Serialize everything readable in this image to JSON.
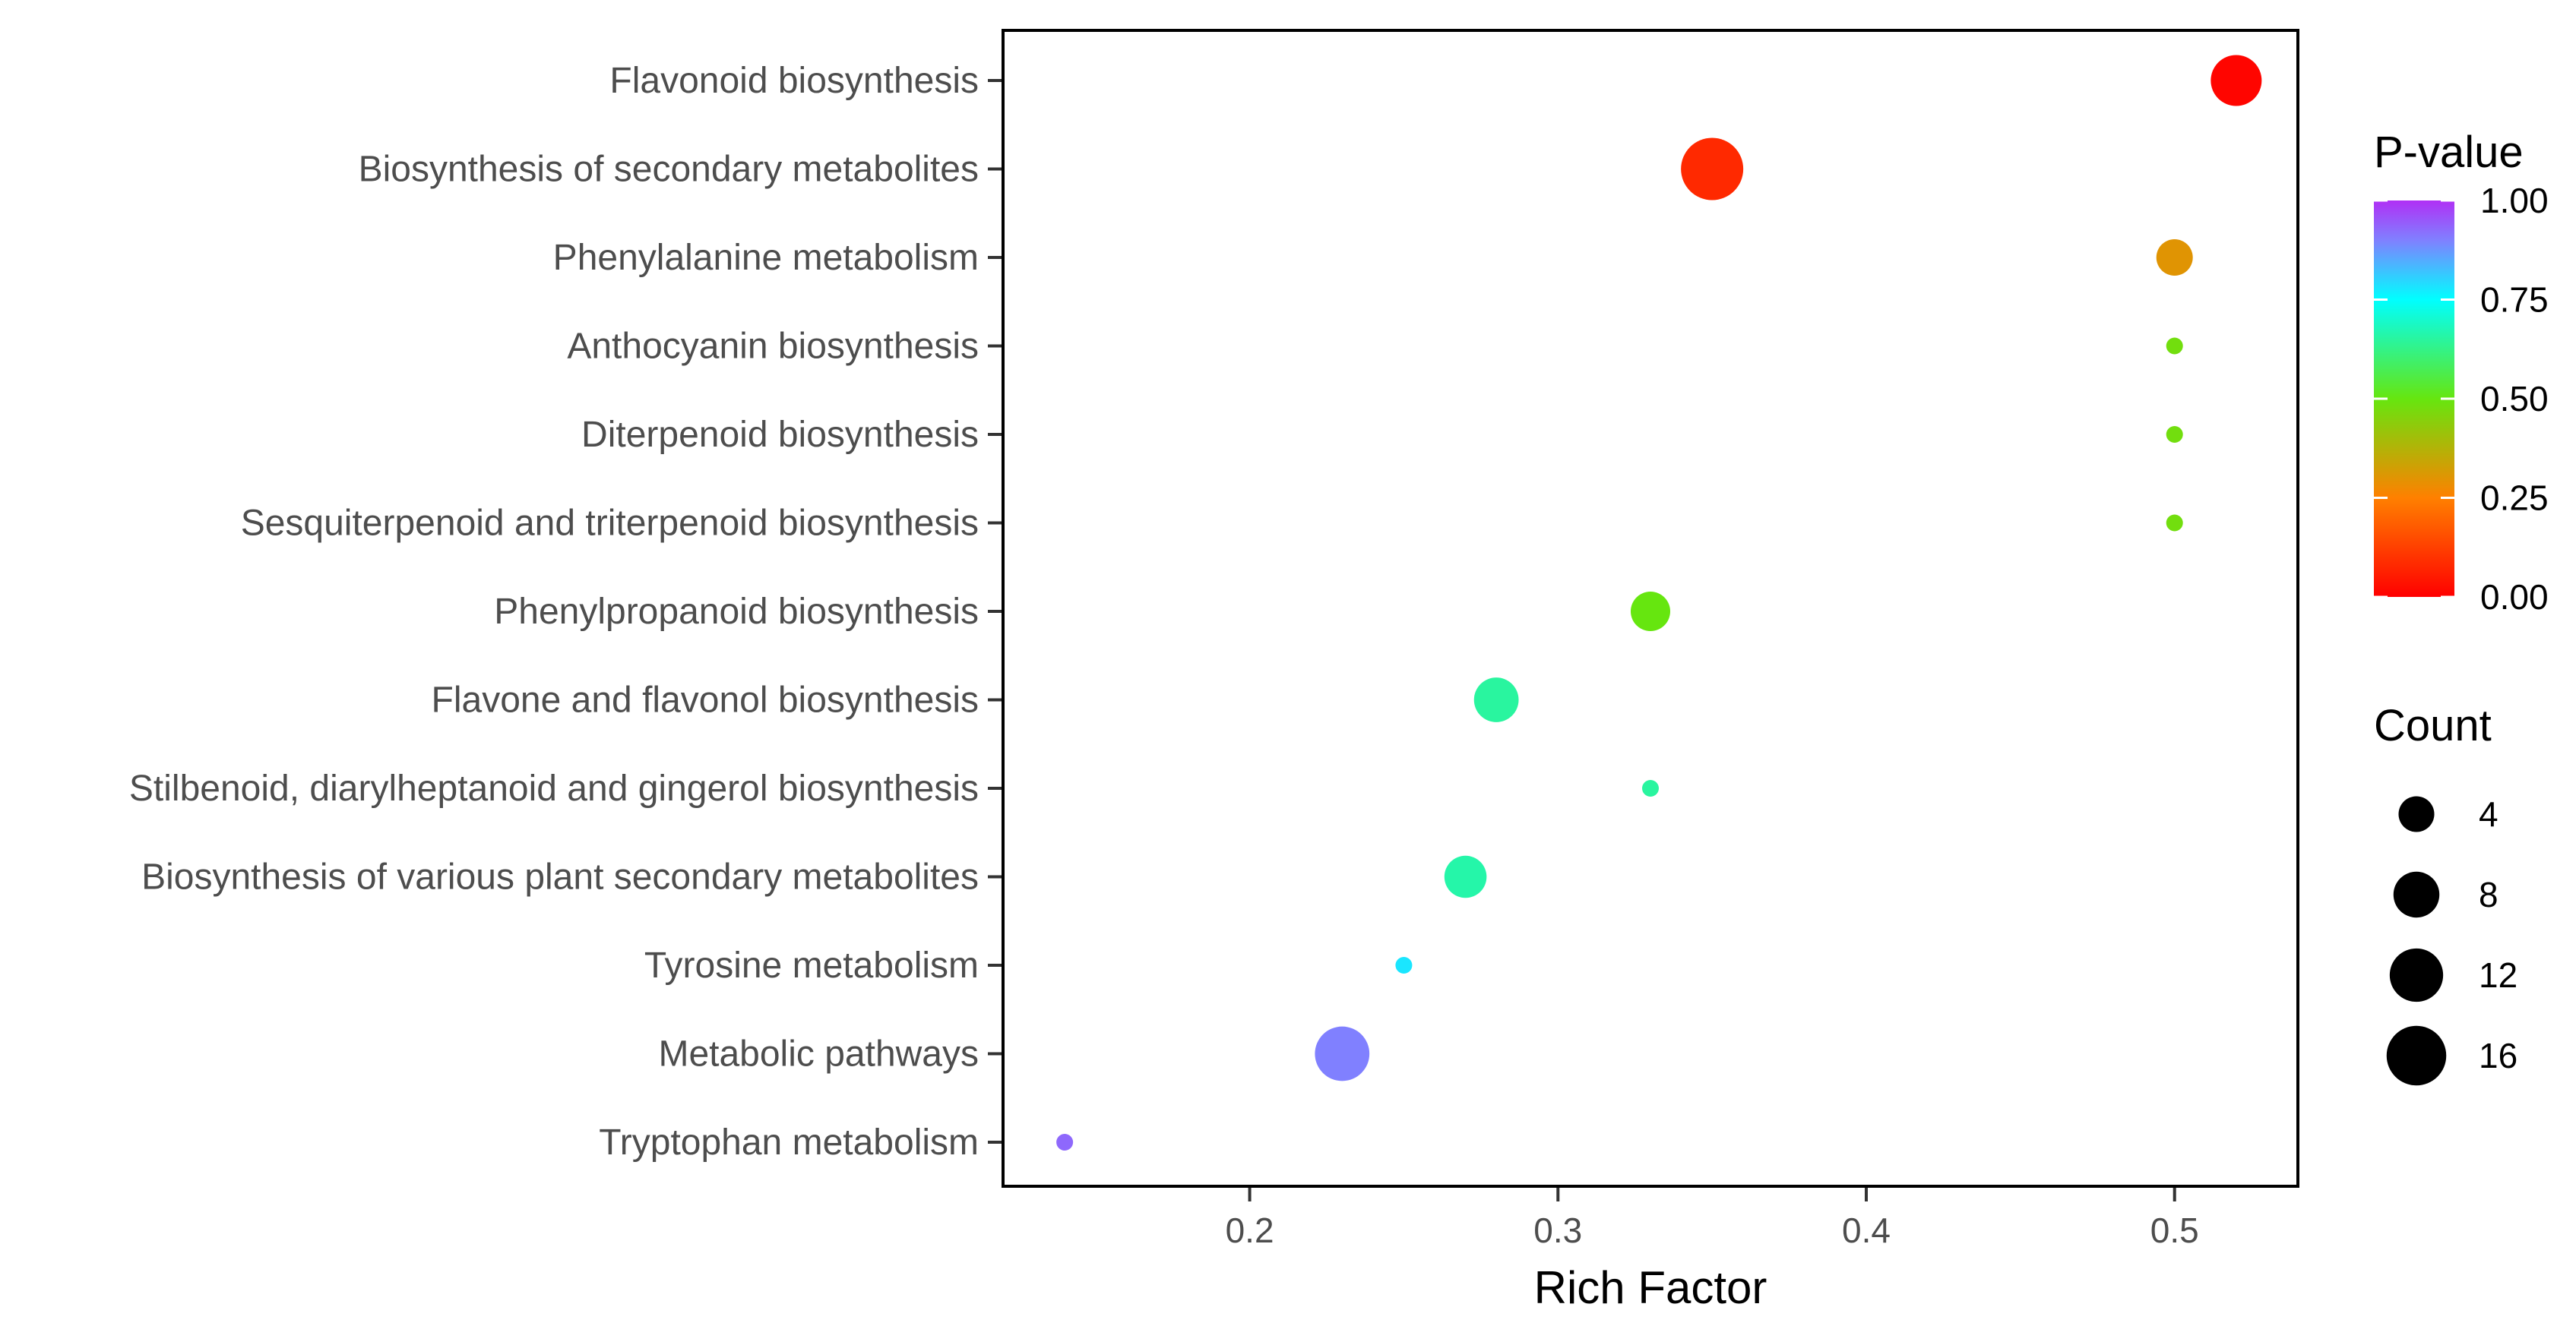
{
  "chart_data": {
    "type": "scatter",
    "xlabel": "Rich Factor",
    "ylabel": "",
    "xlim": [
      0.12,
      0.54
    ],
    "x_ticks": [
      0.2,
      0.3,
      0.4,
      0.5
    ],
    "x_tick_labels": [
      "0.2",
      "0.3",
      "0.4",
      "0.5"
    ],
    "grid": false,
    "legend_placement": "right",
    "categories": [
      "Flavonoid biosynthesis",
      "Biosynthesis of secondary metabolites",
      "Phenylalanine metabolism",
      "Anthocyanin biosynthesis",
      "Diterpenoid biosynthesis",
      "Sesquiterpenoid and triterpenoid biosynthesis",
      "Phenylpropanoid biosynthesis",
      "Flavone and flavonol biosynthesis",
      "Stilbenoid, diarylheptanoid and gingerol biosynthesis",
      "Biosynthesis of various plant secondary metabolites",
      "Tyrosine metabolism",
      "Metabolic pathways",
      "Tryptophan metabolism"
    ],
    "points": [
      {
        "pathway": "Flavonoid biosynthesis",
        "rich_factor": 0.52,
        "count": 10,
        "p_value": 0.01
      },
      {
        "pathway": "Biosynthesis of secondary metabolites",
        "rich_factor": 0.35,
        "count": 17,
        "p_value": 0.08
      },
      {
        "pathway": "Phenylalanine metabolism",
        "rich_factor": 0.5,
        "count": 4,
        "p_value": 0.3
      },
      {
        "pathway": "Anthocyanin biosynthesis",
        "rich_factor": 0.5,
        "count": 1,
        "p_value": 0.48
      },
      {
        "pathway": "Diterpenoid biosynthesis",
        "rich_factor": 0.5,
        "count": 1,
        "p_value": 0.48
      },
      {
        "pathway": "Sesquiterpenoid and triterpenoid biosynthesis",
        "rich_factor": 0.5,
        "count": 1,
        "p_value": 0.48
      },
      {
        "pathway": "Phenylpropanoid biosynthesis",
        "rich_factor": 0.33,
        "count": 5,
        "p_value": 0.5
      },
      {
        "pathway": "Flavone and flavonol biosynthesis",
        "rich_factor": 0.28,
        "count": 7,
        "p_value": 0.65
      },
      {
        "pathway": "Stilbenoid, diarylheptanoid and gingerol biosynthesis",
        "rich_factor": 0.33,
        "count": 1,
        "p_value": 0.65
      },
      {
        "pathway": "Biosynthesis of various plant secondary metabolites",
        "rich_factor": 0.27,
        "count": 6,
        "p_value": 0.66
      },
      {
        "pathway": "Tyrosine metabolism",
        "rich_factor": 0.25,
        "count": 1,
        "p_value": 0.78
      },
      {
        "pathway": "Metabolic pathways",
        "rich_factor": 0.23,
        "count": 12,
        "p_value": 0.9
      },
      {
        "pathway": "Tryptophan metabolism",
        "rich_factor": 0.14,
        "count": 1,
        "p_value": 0.93
      }
    ],
    "color_legend": {
      "title": "P-value",
      "ticks": [
        1.0,
        0.75,
        0.5,
        0.25,
        0.0
      ],
      "tick_labels": [
        "1.00",
        "0.75",
        "0.50",
        "0.25",
        "0.00"
      ],
      "stops": [
        {
          "value": 0.0,
          "color": "#ff0000"
        },
        {
          "value": 0.25,
          "color": "#ff8000"
        },
        {
          "value": 0.5,
          "color": "#66e60f"
        },
        {
          "value": 0.75,
          "color": "#00ffff"
        },
        {
          "value": 0.9,
          "color": "#8080ff"
        },
        {
          "value": 1.0,
          "color": "#b030f5"
        }
      ]
    },
    "size_legend": {
      "title": "Count",
      "values": [
        4,
        8,
        12,
        16
      ],
      "labels": [
        "4",
        "8",
        "12",
        "16"
      ]
    }
  }
}
